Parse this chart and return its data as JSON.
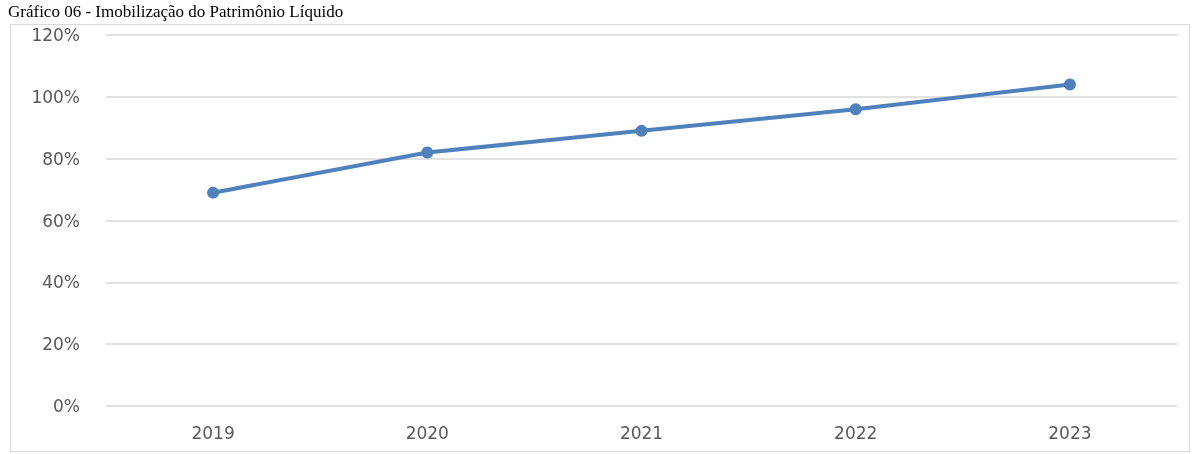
{
  "chart_data": {
    "type": "line",
    "title": "Gráfico 06 - Imobilização do Patrimônio Líquido",
    "categories": [
      "2019",
      "2020",
      "2021",
      "2022",
      "2023"
    ],
    "series": [
      {
        "color": "#4f81bd",
        "values": [
          69,
          82,
          89,
          96,
          104
        ]
      }
    ],
    "ylim": [
      0,
      120
    ],
    "yticks": [
      {
        "value": 0,
        "label": "0%"
      },
      {
        "value": 20,
        "label": "20%"
      },
      {
        "value": 40,
        "label": "40%"
      },
      {
        "value": 60,
        "label": "60%"
      },
      {
        "value": 80,
        "label": "80%"
      },
      {
        "value": 100,
        "label": "100%"
      },
      {
        "value": 120,
        "label": "120%"
      }
    ],
    "grid": "y",
    "marker": "circle",
    "line_style": "solid"
  }
}
